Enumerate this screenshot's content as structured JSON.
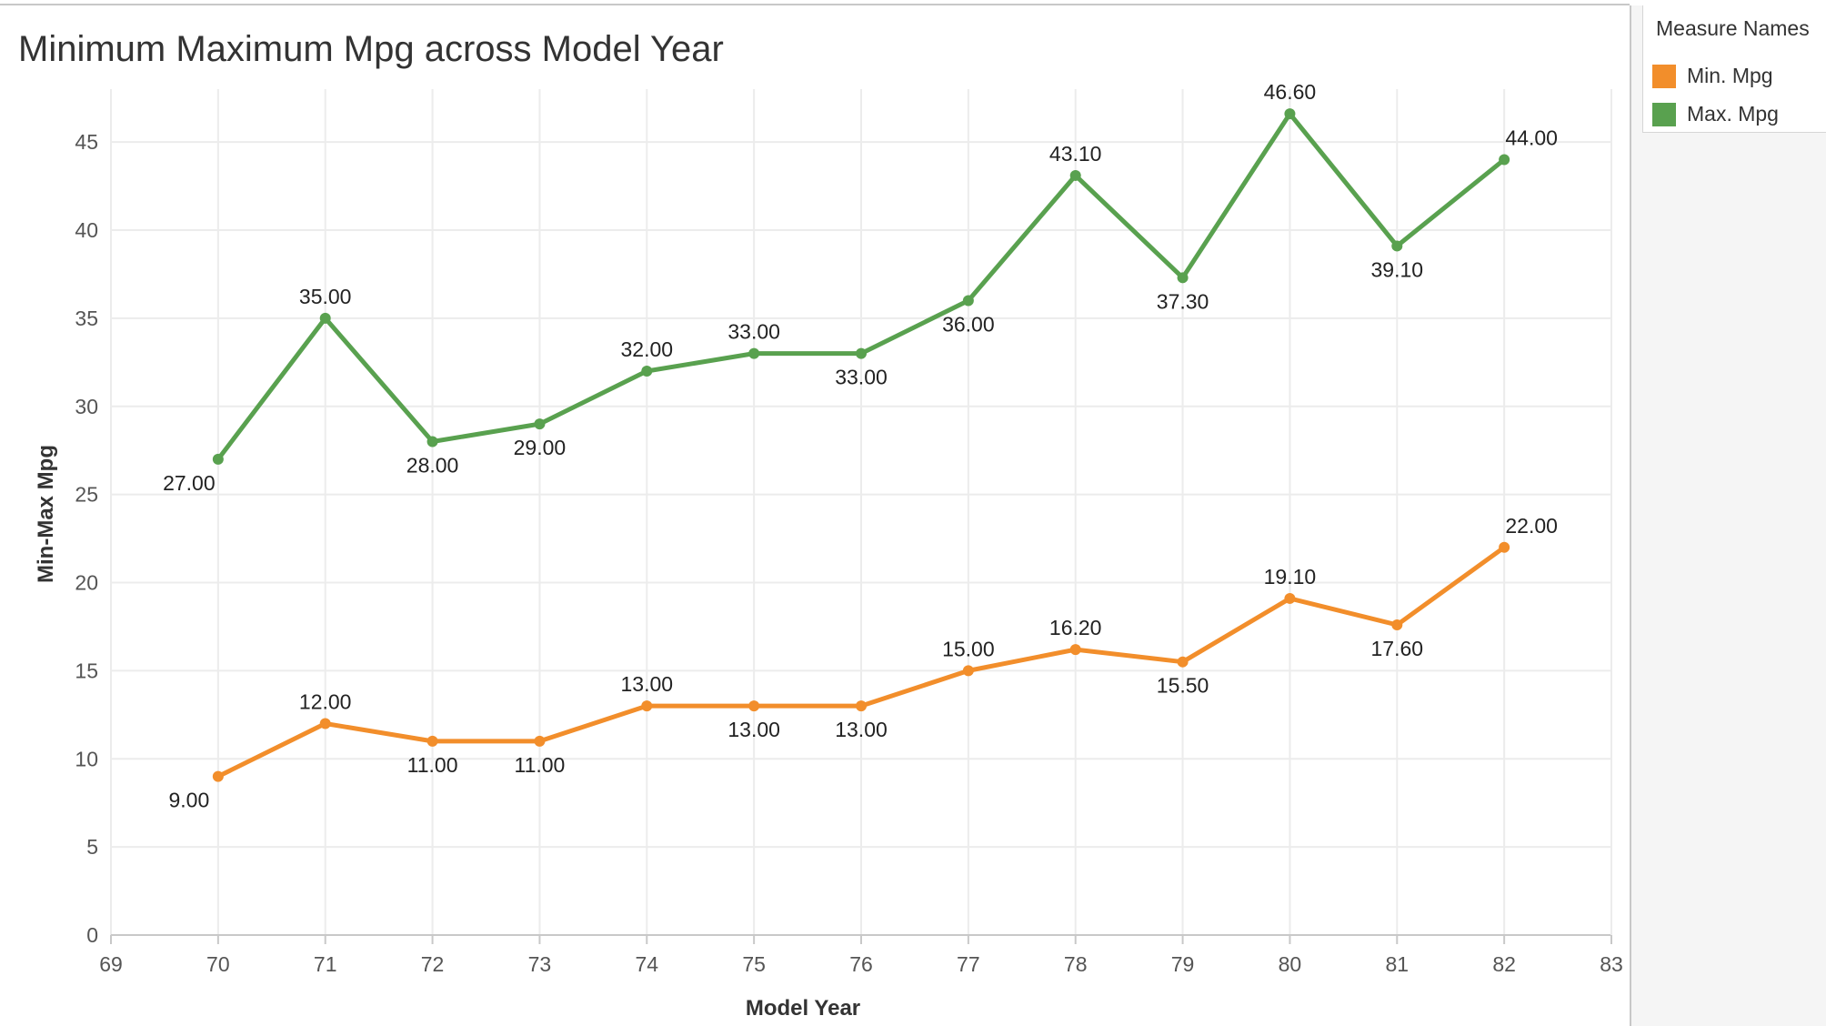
{
  "chart_data": {
    "type": "line",
    "title": "Minimum Maximum Mpg across Model Year",
    "xlabel": "Model Year",
    "ylabel": "Min-Max Mpg",
    "x": [
      70,
      71,
      72,
      73,
      74,
      75,
      76,
      77,
      78,
      79,
      80,
      81,
      82
    ],
    "xlim": [
      69,
      83
    ],
    "ylim": [
      0,
      48
    ],
    "x_ticks": [
      "69",
      "70",
      "71",
      "72",
      "73",
      "74",
      "75",
      "76",
      "77",
      "78",
      "79",
      "80",
      "81",
      "82",
      "83"
    ],
    "y_ticks": [
      "0",
      "5",
      "10",
      "15",
      "20",
      "25",
      "30",
      "35",
      "40",
      "45"
    ],
    "grid": true,
    "legend_title": "Measure Names",
    "legend_position": "top-right",
    "series": [
      {
        "name": "Min. Mpg",
        "color": "#f28e2b",
        "values": [
          9.0,
          12.0,
          11.0,
          11.0,
          13.0,
          13.0,
          13.0,
          15.0,
          16.2,
          15.5,
          19.1,
          17.6,
          22.0
        ],
        "labels": [
          "9.00",
          "12.00",
          "11.00",
          "11.00",
          "13.00",
          "13.00",
          "13.00",
          "15.00",
          "16.20",
          "15.50",
          "19.10",
          "17.60",
          "22.00"
        ],
        "label_positions": [
          "below",
          "above",
          "below",
          "below",
          "above",
          "below",
          "below",
          "above",
          "above",
          "below",
          "above",
          "below",
          "above"
        ]
      },
      {
        "name": "Max. Mpg",
        "color": "#59a14f",
        "values": [
          27.0,
          35.0,
          28.0,
          29.0,
          32.0,
          33.0,
          33.0,
          36.0,
          43.1,
          37.3,
          46.6,
          39.1,
          44.0
        ],
        "labels": [
          "27.00",
          "35.00",
          "28.00",
          "29.00",
          "32.00",
          "33.00",
          "33.00",
          "36.00",
          "43.10",
          "37.30",
          "46.60",
          "39.10",
          "44.00"
        ],
        "label_positions": [
          "below",
          "above",
          "below",
          "below",
          "above",
          "above",
          "below",
          "below",
          "above",
          "below",
          "above",
          "below",
          "above"
        ]
      }
    ]
  }
}
